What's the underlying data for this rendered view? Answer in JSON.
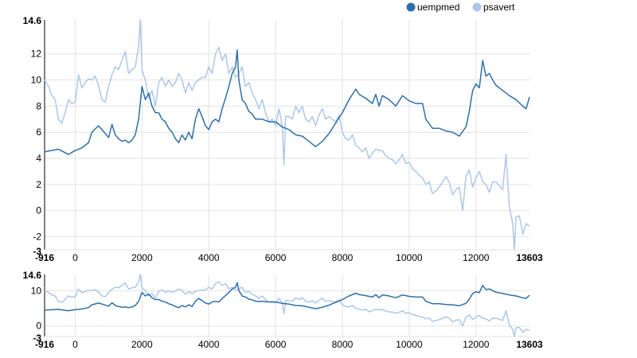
{
  "legend": {
    "placement": "top-right",
    "items": [
      {
        "label": "uempmed",
        "color": "#2f6fa8",
        "enabled": true
      },
      {
        "label": "psavert",
        "color": "#aec7e8",
        "enabled": true
      }
    ]
  },
  "chart_data": {
    "type": "line",
    "x_domain": [
      -916,
      13603
    ],
    "x_ticks": [
      0,
      2000,
      4000,
      6000,
      8000,
      10000,
      12000
    ],
    "main": {
      "ylim": [
        -3,
        14.6
      ],
      "y_ticks": [
        -2,
        0,
        2,
        4,
        6,
        8,
        10,
        12
      ]
    },
    "context": {
      "ylim": [
        -3,
        14.6
      ],
      "y_ticks": [
        0,
        10
      ]
    },
    "grid": true,
    "series": [
      {
        "name": "uempmed",
        "color": "#2f6fa8",
        "points": [
          [
            -916,
            4.5
          ],
          [
            -500,
            4.7
          ],
          [
            -200,
            4.3
          ],
          [
            0,
            4.6
          ],
          [
            200,
            4.8
          ],
          [
            400,
            5.2
          ],
          [
            500,
            6.0
          ],
          [
            700,
            6.5
          ],
          [
            800,
            6.2
          ],
          [
            1000,
            5.6
          ],
          [
            1100,
            6.6
          ],
          [
            1200,
            5.8
          ],
          [
            1300,
            5.5
          ],
          [
            1400,
            5.3
          ],
          [
            1500,
            5.4
          ],
          [
            1600,
            5.2
          ],
          [
            1700,
            5.4
          ],
          [
            1800,
            5.8
          ],
          [
            1900,
            7.0
          ],
          [
            2000,
            9.5
          ],
          [
            2100,
            8.5
          ],
          [
            2200,
            9.0
          ],
          [
            2300,
            8.0
          ],
          [
            2400,
            7.5
          ],
          [
            2500,
            7.5
          ],
          [
            2600,
            7.0
          ],
          [
            2700,
            6.8
          ],
          [
            2800,
            6.3
          ],
          [
            2900,
            6.0
          ],
          [
            3000,
            5.5
          ],
          [
            3100,
            5.2
          ],
          [
            3200,
            5.8
          ],
          [
            3300,
            5.4
          ],
          [
            3400,
            6.0
          ],
          [
            3500,
            5.5
          ],
          [
            3600,
            7.0
          ],
          [
            3700,
            7.8
          ],
          [
            3800,
            7.2
          ],
          [
            3900,
            6.5
          ],
          [
            4000,
            6.2
          ],
          [
            4100,
            6.8
          ],
          [
            4200,
            7.0
          ],
          [
            4300,
            6.8
          ],
          [
            4400,
            7.8
          ],
          [
            4500,
            8.6
          ],
          [
            4600,
            9.5
          ],
          [
            4700,
            10.5
          ],
          [
            4800,
            11.0
          ],
          [
            4850,
            12.3
          ],
          [
            4900,
            10.0
          ],
          [
            5000,
            8.5
          ],
          [
            5100,
            8.2
          ],
          [
            5200,
            7.6
          ],
          [
            5300,
            7.4
          ],
          [
            5400,
            7.0
          ],
          [
            5600,
            7.0
          ],
          [
            5800,
            6.8
          ],
          [
            6000,
            6.8
          ],
          [
            6200,
            6.4
          ],
          [
            6400,
            6.2
          ],
          [
            6600,
            5.8
          ],
          [
            6800,
            5.7
          ],
          [
            7000,
            5.3
          ],
          [
            7200,
            4.9
          ],
          [
            7400,
            5.3
          ],
          [
            7600,
            5.9
          ],
          [
            7800,
            6.7
          ],
          [
            8000,
            7.5
          ],
          [
            8200,
            8.5
          ],
          [
            8400,
            9.3
          ],
          [
            8500,
            8.9
          ],
          [
            8700,
            8.6
          ],
          [
            8900,
            8.2
          ],
          [
            9000,
            8.9
          ],
          [
            9100,
            8.0
          ],
          [
            9200,
            8.8
          ],
          [
            9400,
            8.5
          ],
          [
            9600,
            8.0
          ],
          [
            9800,
            8.8
          ],
          [
            10000,
            8.4
          ],
          [
            10200,
            8.2
          ],
          [
            10400,
            8.2
          ],
          [
            10500,
            7.0
          ],
          [
            10700,
            6.3
          ],
          [
            10900,
            6.3
          ],
          [
            11100,
            6.1
          ],
          [
            11300,
            6.0
          ],
          [
            11500,
            5.7
          ],
          [
            11700,
            6.4
          ],
          [
            11800,
            7.6
          ],
          [
            11900,
            9.2
          ],
          [
            12000,
            9.7
          ],
          [
            12100,
            9.4
          ],
          [
            12200,
            11.5
          ],
          [
            12300,
            10.3
          ],
          [
            12400,
            10.5
          ],
          [
            12500,
            10.0
          ],
          [
            12600,
            9.6
          ],
          [
            12800,
            9.2
          ],
          [
            13000,
            8.8
          ],
          [
            13200,
            8.5
          ],
          [
            13400,
            8.0
          ],
          [
            13500,
            7.8
          ],
          [
            13603,
            8.7
          ]
        ]
      },
      {
        "name": "psavert",
        "color": "#aec7e8",
        "points": [
          [
            -916,
            10.0
          ],
          [
            -800,
            9.5
          ],
          [
            -700,
            8.8
          ],
          [
            -600,
            8.5
          ],
          [
            -500,
            7.0
          ],
          [
            -400,
            6.7
          ],
          [
            -300,
            7.5
          ],
          [
            -200,
            8.5
          ],
          [
            -100,
            8.2
          ],
          [
            0,
            8.3
          ],
          [
            100,
            10.4
          ],
          [
            200,
            9.4
          ],
          [
            300,
            9.8
          ],
          [
            400,
            10.1
          ],
          [
            500,
            10.0
          ],
          [
            600,
            10.3
          ],
          [
            700,
            9.6
          ],
          [
            800,
            8.5
          ],
          [
            900,
            8.3
          ],
          [
            1000,
            9.5
          ],
          [
            1100,
            10.4
          ],
          [
            1200,
            11.0
          ],
          [
            1300,
            10.8
          ],
          [
            1400,
            11.5
          ],
          [
            1500,
            12.2
          ],
          [
            1600,
            10.5
          ],
          [
            1700,
            10.8
          ],
          [
            1800,
            11.0
          ],
          [
            1900,
            12.6
          ],
          [
            1950,
            14.6
          ],
          [
            2000,
            10.8
          ],
          [
            2100,
            10.0
          ],
          [
            2200,
            8.6
          ],
          [
            2300,
            9.2
          ],
          [
            2400,
            8.0
          ],
          [
            2500,
            9.8
          ],
          [
            2600,
            10.2
          ],
          [
            2700,
            9.5
          ],
          [
            2800,
            10.0
          ],
          [
            2900,
            9.5
          ],
          [
            3000,
            9.8
          ],
          [
            3100,
            10.5
          ],
          [
            3200,
            10.0
          ],
          [
            3300,
            9.0
          ],
          [
            3400,
            9.8
          ],
          [
            3500,
            9.2
          ],
          [
            3600,
            9.8
          ],
          [
            3700,
            10.0
          ],
          [
            3800,
            10.2
          ],
          [
            3900,
            10.2
          ],
          [
            4000,
            11.0
          ],
          [
            4100,
            10.5
          ],
          [
            4200,
            12.0
          ],
          [
            4300,
            12.5
          ],
          [
            4400,
            11.5
          ],
          [
            4500,
            12.0
          ],
          [
            4600,
            10.5
          ],
          [
            4700,
            11.0
          ],
          [
            4800,
            10.2
          ],
          [
            4900,
            10.5
          ],
          [
            5000,
            11.0
          ],
          [
            5100,
            9.5
          ],
          [
            5200,
            9.8
          ],
          [
            5300,
            9.0
          ],
          [
            5400,
            8.5
          ],
          [
            5500,
            7.8
          ],
          [
            5600,
            8.5
          ],
          [
            5700,
            7.5
          ],
          [
            5800,
            6.8
          ],
          [
            5900,
            7.0
          ],
          [
            6000,
            6.5
          ],
          [
            6100,
            7.8
          ],
          [
            6200,
            6.5
          ],
          [
            6250,
            3.5
          ],
          [
            6300,
            7.2
          ],
          [
            6400,
            7.2
          ],
          [
            6500,
            7.0
          ],
          [
            6600,
            8.0
          ],
          [
            6700,
            7.5
          ],
          [
            6800,
            8.0
          ],
          [
            6900,
            7.0
          ],
          [
            7000,
            6.8
          ],
          [
            7100,
            7.2
          ],
          [
            7200,
            6.5
          ],
          [
            7300,
            7.3
          ],
          [
            7400,
            7.8
          ],
          [
            7500,
            7.0
          ],
          [
            7600,
            7.2
          ],
          [
            7700,
            7.0
          ],
          [
            7800,
            6.8
          ],
          [
            7900,
            7.3
          ],
          [
            8000,
            6.0
          ],
          [
            8100,
            5.5
          ],
          [
            8200,
            5.4
          ],
          [
            8300,
            5.8
          ],
          [
            8400,
            5.0
          ],
          [
            8500,
            4.8
          ],
          [
            8600,
            4.5
          ],
          [
            8700,
            4.8
          ],
          [
            8800,
            4.0
          ],
          [
            8900,
            4.4
          ],
          [
            9000,
            4.7
          ],
          [
            9100,
            4.6
          ],
          [
            9200,
            4.6
          ],
          [
            9300,
            4.2
          ],
          [
            9400,
            4.0
          ],
          [
            9500,
            3.9
          ],
          [
            9600,
            3.6
          ],
          [
            9700,
            3.9
          ],
          [
            9800,
            4.3
          ],
          [
            9900,
            3.6
          ],
          [
            10000,
            3.7
          ],
          [
            10100,
            3.2
          ],
          [
            10200,
            3.0
          ],
          [
            10300,
            2.7
          ],
          [
            10400,
            2.5
          ],
          [
            10500,
            2.0
          ],
          [
            10600,
            2.2
          ],
          [
            10700,
            1.3
          ],
          [
            10800,
            1.5
          ],
          [
            10900,
            1.8
          ],
          [
            11000,
            2.2
          ],
          [
            11100,
            2.6
          ],
          [
            11200,
            2.2
          ],
          [
            11300,
            1.2
          ],
          [
            11400,
            1.6
          ],
          [
            11500,
            1.8
          ],
          [
            11600,
            0.0
          ],
          [
            11700,
            2.6
          ],
          [
            11800,
            3.1
          ],
          [
            11900,
            1.8
          ],
          [
            12000,
            2.5
          ],
          [
            12100,
            3.0
          ],
          [
            12200,
            2.2
          ],
          [
            12300,
            2.0
          ],
          [
            12400,
            1.4
          ],
          [
            12500,
            2.2
          ],
          [
            12600,
            2.2
          ],
          [
            12700,
            1.9
          ],
          [
            12800,
            1.6
          ],
          [
            12900,
            4.3
          ],
          [
            13000,
            0.3
          ],
          [
            13100,
            -1.0
          ],
          [
            13150,
            -3.0
          ],
          [
            13200,
            -0.5
          ],
          [
            13300,
            -0.4
          ],
          [
            13400,
            -1.8
          ],
          [
            13500,
            -1.0
          ],
          [
            13603,
            -1.2
          ]
        ]
      }
    ]
  }
}
